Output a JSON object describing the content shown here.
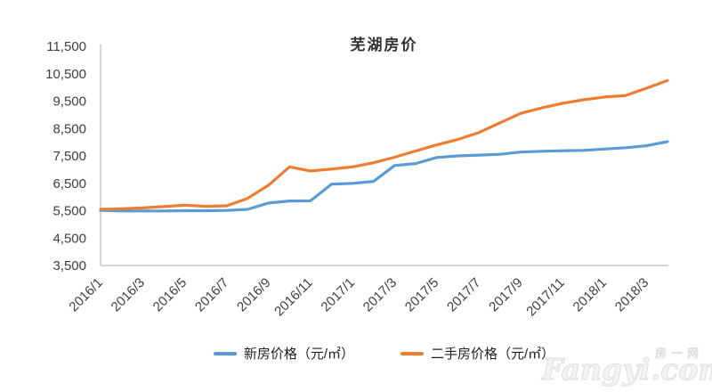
{
  "chart_data": {
    "type": "line",
    "title": "芜湖房价",
    "xlabel": "",
    "ylabel": "",
    "ylim": [
      3500,
      11500
    ],
    "y_tick_step": 1000,
    "grid": false,
    "legend_position": "bottom",
    "axis_color": "#BFBFBF",
    "categories": [
      "2016/1",
      "2016/2",
      "2016/3",
      "2016/4",
      "2016/5",
      "2016/6",
      "2016/7",
      "2016/8",
      "2016/9",
      "2016/10",
      "2016/11",
      "2016/12",
      "2017/1",
      "2017/2",
      "2017/3",
      "2017/4",
      "2017/5",
      "2017/6",
      "2017/7",
      "2017/8",
      "2017/9",
      "2017/10",
      "2017/11",
      "2017/12",
      "2018/1",
      "2018/2",
      "2018/3",
      "2018/4"
    ],
    "x_tick_labels": [
      "2016/1",
      "2016/3",
      "2016/5",
      "2016/7",
      "2016/9",
      "2016/11",
      "2017/1",
      "2017/3",
      "2017/5",
      "2017/7",
      "2017/9",
      "2017/11",
      "2018/1",
      "2018/3"
    ],
    "y_tick_labels": [
      "3,500",
      "4,500",
      "5,500",
      "6,500",
      "7,500",
      "8,500",
      "9,500",
      "10,500",
      "11,500"
    ],
    "series": [
      {
        "name": "新房价格（元/㎡）",
        "color": "#5B9BD5",
        "values": [
          5510,
          5490,
          5490,
          5490,
          5500,
          5500,
          5510,
          5550,
          5780,
          5855,
          5860,
          6470,
          6500,
          6570,
          7150,
          7220,
          7440,
          7500,
          7530,
          7560,
          7640,
          7670,
          7690,
          7700,
          7750,
          7800,
          7870,
          8020
        ]
      },
      {
        "name": "二手房价格（元/㎡）",
        "color": "#ED7D31",
        "values": [
          5550,
          5570,
          5600,
          5650,
          5700,
          5660,
          5680,
          5950,
          6430,
          7100,
          6950,
          7020,
          7100,
          7250,
          7450,
          7680,
          7900,
          8100,
          8350,
          8700,
          9050,
          9250,
          9420,
          9550,
          9650,
          9700,
          9970,
          10250
        ]
      }
    ]
  },
  "watermark": {
    "text": "Fangyi.com",
    "cn": "房一网"
  }
}
